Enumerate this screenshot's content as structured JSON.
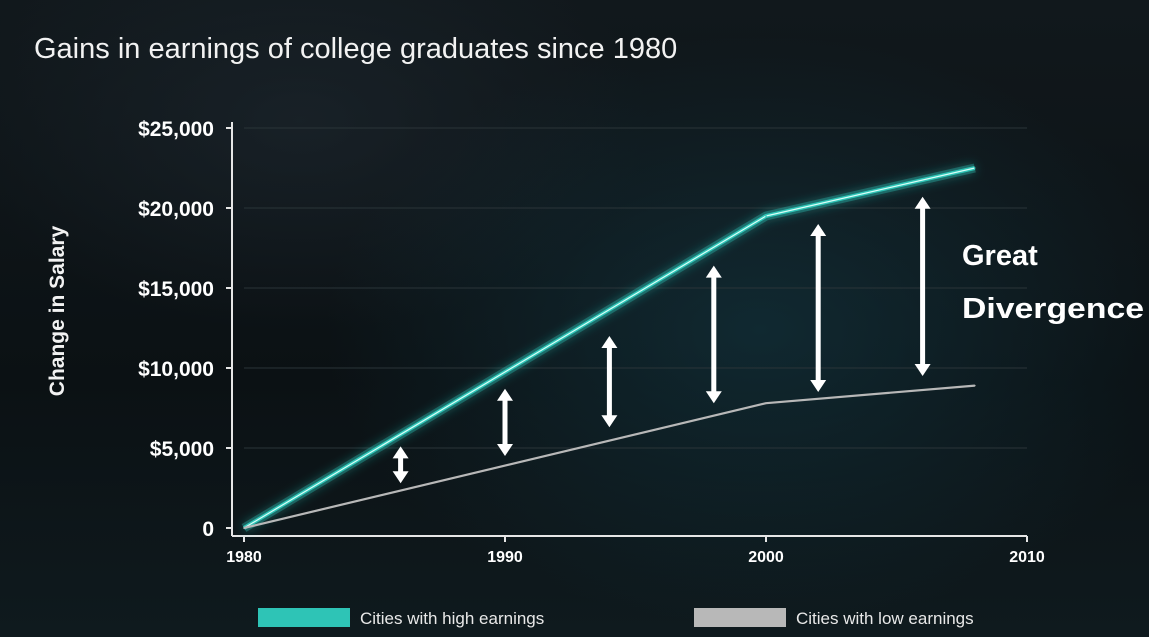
{
  "chart_data": {
    "type": "line",
    "title": "Gains in earnings of college graduates since 1980",
    "ylabel": "Change in Salary",
    "xlabel": "",
    "x": [
      1980,
      2000,
      2008
    ],
    "xlim": [
      1980,
      2010
    ],
    "ylim": [
      0,
      25000
    ],
    "x_ticks": [
      1980,
      1990,
      2000,
      2010
    ],
    "x_tick_labels": [
      "1980",
      "1990",
      "2000",
      "2010"
    ],
    "y_ticks": [
      0,
      5000,
      10000,
      15000,
      20000,
      25000
    ],
    "y_tick_labels": [
      "0",
      "$5,000",
      "$10,000",
      "$15,000",
      "$20,000",
      "$25,000"
    ],
    "grid": true,
    "legend_position": "bottom",
    "series": [
      {
        "name": "Cities with high earnings",
        "color": "#2ec4b6",
        "values": [
          0,
          19500,
          22500
        ]
      },
      {
        "name": "Cities with low earnings",
        "color": "#b8b8b8",
        "values": [
          0,
          7800,
          8900
        ]
      }
    ],
    "annotation": {
      "lines": [
        "Great",
        "Divergence"
      ]
    },
    "divergence_arrows": [
      {
        "x": 1986,
        "from": 2800,
        "to": 5100
      },
      {
        "x": 1990,
        "from": 4500,
        "to": 8700
      },
      {
        "x": 1994,
        "from": 6300,
        "to": 12000
      },
      {
        "x": 1998,
        "from": 7800,
        "to": 16400
      },
      {
        "x": 2002,
        "from": 8500,
        "to": 19000
      },
      {
        "x": 2006,
        "from": 9500,
        "to": 20700
      }
    ]
  }
}
